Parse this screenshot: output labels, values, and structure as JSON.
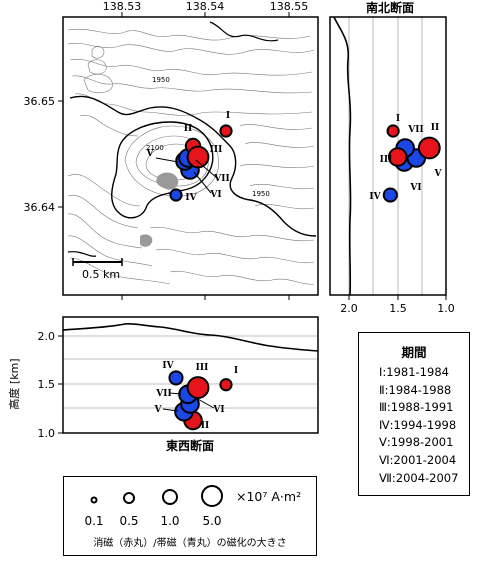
{
  "chart_data": [
    {
      "type": "scatter",
      "panel": "map",
      "top_ticks": [
        "138.53",
        "138.54",
        "138.55"
      ],
      "left_ticks": [
        "36.65",
        "36.64"
      ],
      "contour_labels": [
        "1950",
        "2100",
        "1950"
      ],
      "scale_label": "0.5 km",
      "points": [
        {
          "period": "I",
          "polarity": "demag",
          "size": 0.5
        },
        {
          "period": "II",
          "polarity": "demag",
          "size": 1.0
        },
        {
          "period": "III",
          "polarity": "demag",
          "size": 2.0
        },
        {
          "period": "IV",
          "polarity": "mag",
          "size": 0.5
        },
        {
          "period": "V",
          "polarity": "mag",
          "size": 1.5
        },
        {
          "period": "VI",
          "polarity": "mag",
          "size": 1.5
        },
        {
          "period": "VII",
          "polarity": "mag",
          "size": 1.5
        }
      ]
    },
    {
      "type": "scatter",
      "panel": "ns-section",
      "title": "南北断面",
      "x_ticks": [
        "2.0",
        "1.5",
        "1.0"
      ],
      "xlim": [
        2.2,
        0.95
      ],
      "points": [
        {
          "period": "I",
          "polarity": "demag",
          "x": 1.52,
          "size": 0.5
        },
        {
          "period": "II",
          "polarity": "demag",
          "x": 1.13,
          "size": 2.0
        },
        {
          "period": "III",
          "polarity": "demag",
          "x": 1.47,
          "size": 1.5
        },
        {
          "period": "IV",
          "polarity": "mag",
          "x": 1.55,
          "size": 0.8
        },
        {
          "period": "V",
          "polarity": "mag",
          "x": 1.27,
          "size": 1.5
        },
        {
          "period": "VI",
          "polarity": "mag",
          "x": 1.4,
          "size": 1.5
        },
        {
          "period": "VII",
          "polarity": "mag",
          "x": 1.39,
          "size": 1.5
        }
      ]
    },
    {
      "type": "scatter",
      "panel": "ew-section",
      "title": "東西断面",
      "ylabel": "高度 [km]",
      "y_ticks": [
        "2.0",
        "1.5",
        "1.0"
      ],
      "ylim": [
        1.0,
        2.2
      ],
      "points": [
        {
          "period": "I",
          "polarity": "demag",
          "y": 1.5,
          "size": 0.5
        },
        {
          "period": "II",
          "polarity": "demag",
          "y": 1.13,
          "size": 1.5
        },
        {
          "period": "III",
          "polarity": "demag",
          "y": 1.47,
          "size": 2.0
        },
        {
          "period": "IV",
          "polarity": "mag",
          "y": 1.57,
          "size": 0.8
        },
        {
          "period": "V",
          "polarity": "mag",
          "y": 1.22,
          "size": 1.5
        },
        {
          "period": "VI",
          "polarity": "mag",
          "y": 1.3,
          "size": 1.5
        },
        {
          "period": "VII",
          "polarity": "mag",
          "y": 1.4,
          "size": 1.5
        }
      ]
    }
  ],
  "colors": {
    "demag": "#e8141b",
    "mag": "#1b47e6"
  },
  "period_legend": {
    "title": "期間",
    "items": [
      "Ⅰ:1981-1984",
      "Ⅱ:1984-1988",
      "Ⅲ:1988-1991",
      "Ⅳ:1994-1998",
      "Ⅴ:1998-2001",
      "Ⅵ:2001-2004",
      "Ⅶ:2004-2007"
    ]
  },
  "size_legend": {
    "values": [
      "0.1",
      "0.5",
      "1.0",
      "5.0"
    ],
    "unit": "×10⁷ A·m²",
    "caption": "消磁（赤丸）/帯磁（青丸）の磁化の大きさ"
  }
}
